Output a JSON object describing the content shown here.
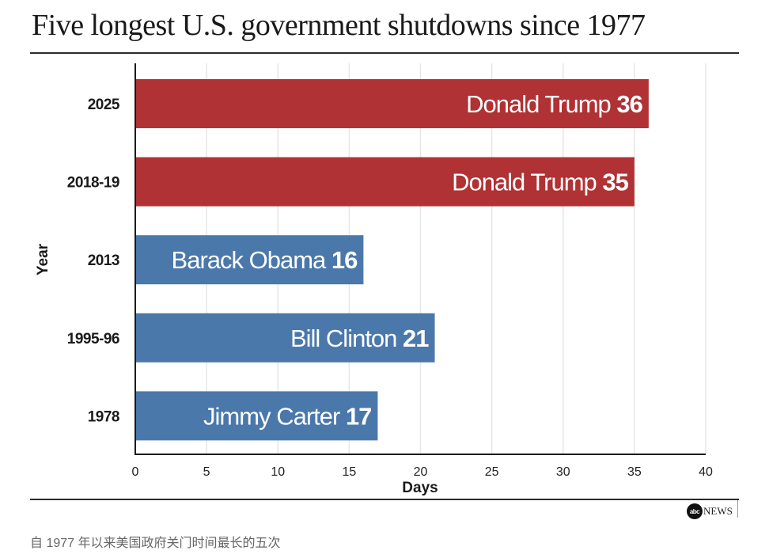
{
  "chart_data": {
    "type": "bar",
    "orientation": "horizontal",
    "title": "Five longest U.S. government shutdowns since 1977",
    "xlabel": "Days",
    "ylabel": "Year",
    "xlim": [
      0,
      40
    ],
    "xticks": [
      0,
      5,
      10,
      15,
      20,
      25,
      30,
      35,
      40
    ],
    "grid": true,
    "categories": [
      "2025",
      "2018-19",
      "2013",
      "1995-96",
      "1978"
    ],
    "values": [
      36,
      35,
      16,
      21,
      17
    ],
    "bar_labels": [
      {
        "name": "Donald Trump",
        "value": "36"
      },
      {
        "name": "Donald Trump",
        "value": "35"
      },
      {
        "name": "Barack Obama",
        "value": "16"
      },
      {
        "name": "Bill Clinton",
        "value": "21"
      },
      {
        "name": "Jimmy Carter",
        "value": "17"
      }
    ],
    "colors": [
      "#b03234",
      "#b03234",
      "#4a78ab",
      "#4a78ab",
      "#4a78ab"
    ],
    "party_colors": {
      "republican": "#b03234",
      "democrat": "#4a78ab"
    }
  },
  "source": {
    "logo_disc": "abc",
    "logo_text": "NEWS"
  },
  "caption": "自 1977 年以来美国政府关门时间最长的五次"
}
